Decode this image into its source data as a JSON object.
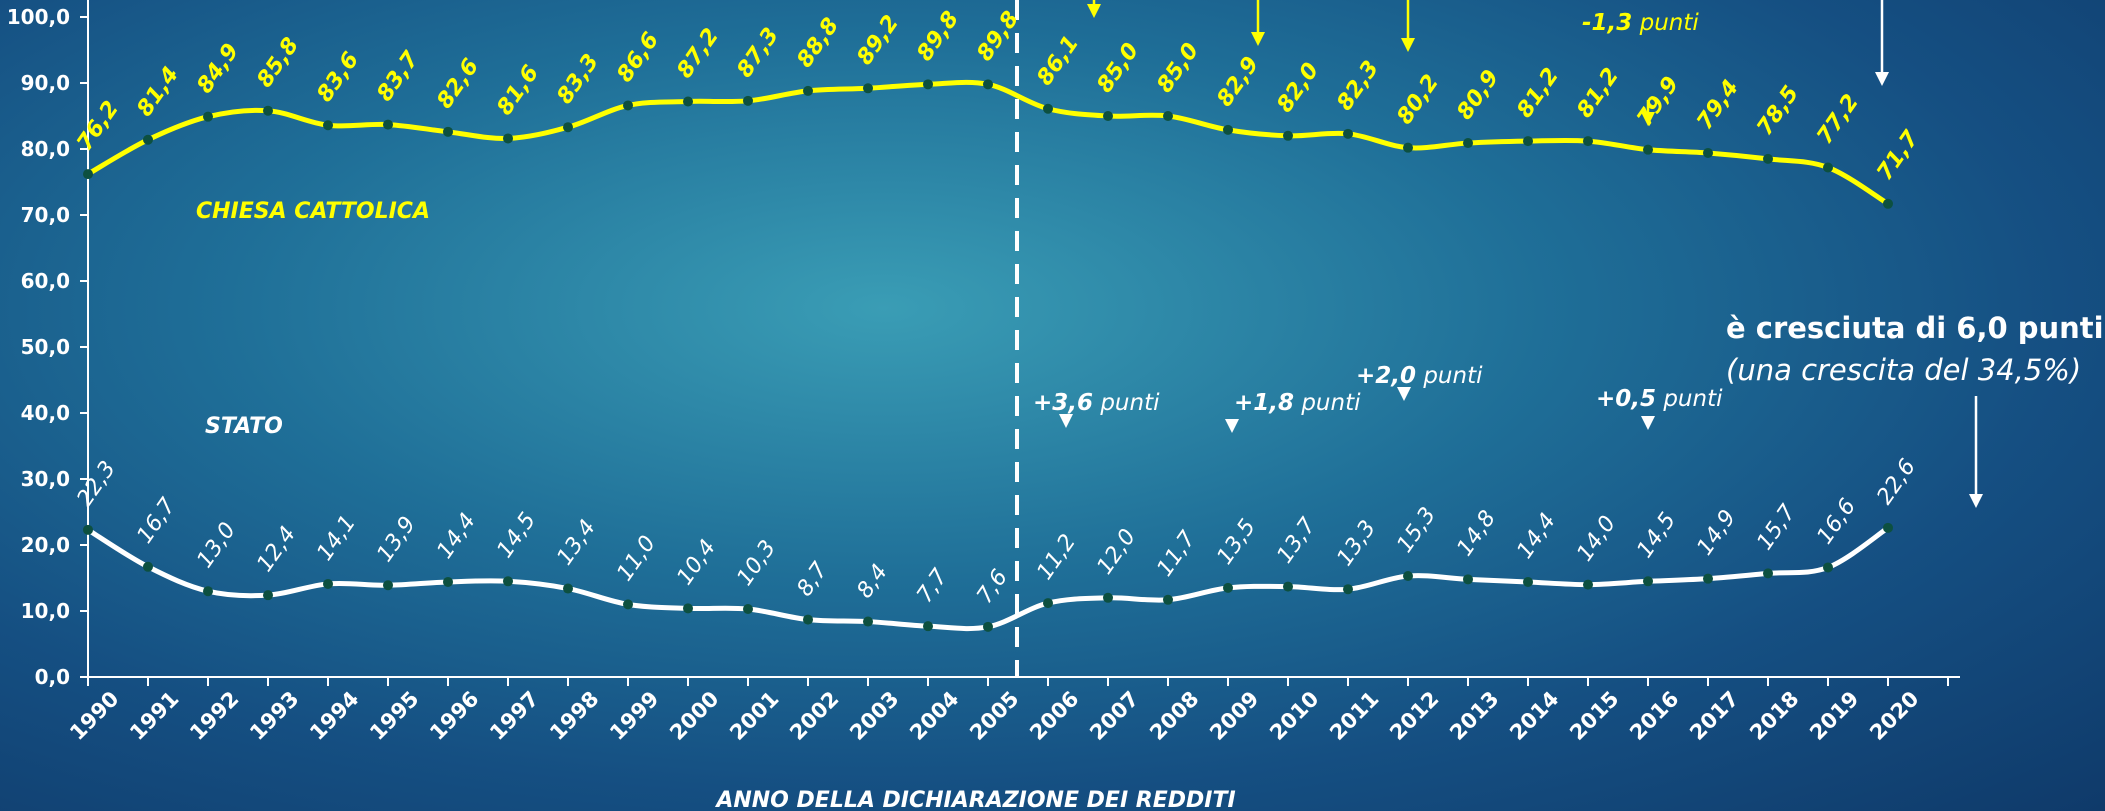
{
  "chart_data": {
    "type": "line",
    "title": "",
    "xlabel": "ANNO DELLA DICHIARAZIONE DEI REDDITI",
    "ylabel": "",
    "ylim": [
      0,
      100
    ],
    "yticks": [
      "0,0",
      "10,0",
      "20,0",
      "30,0",
      "40,0",
      "50,0",
      "60,0",
      "70,0",
      "80,0",
      "90,0",
      "100,0"
    ],
    "x": [
      "1990",
      "1991",
      "1992",
      "1993",
      "1994",
      "1995",
      "1996",
      "1997",
      "1998",
      "1999",
      "2000",
      "2001",
      "2002",
      "2003",
      "2004",
      "2005",
      "2006",
      "2007",
      "2008",
      "2009",
      "2010",
      "2011",
      "2012",
      "2013",
      "2014",
      "2015",
      "2016",
      "2017",
      "2018",
      "2019",
      "2020"
    ],
    "series": [
      {
        "name": "CHIESA CATTOLICA",
        "color": "#ffff00",
        "values": [
          76.2,
          81.4,
          84.9,
          85.8,
          83.6,
          83.7,
          82.6,
          81.6,
          83.3,
          86.6,
          87.2,
          87.3,
          88.8,
          89.2,
          89.8,
          89.8,
          86.1,
          85.0,
          85.0,
          82.9,
          82.0,
          82.3,
          80.2,
          80.9,
          81.2,
          81.2,
          79.9,
          79.4,
          78.5,
          77.2,
          71.7
        ],
        "labels": [
          "76,2",
          "81,4",
          "84,9",
          "85,8",
          "83,6",
          "83,7",
          "82,6",
          "81,6",
          "83,3",
          "86,6",
          "87,2",
          "87,3",
          "88,8",
          "89,2",
          "89,8",
          "89,8",
          "86,1",
          "85,0",
          "85,0",
          "82,9",
          "82,0",
          "82,3",
          "80,2",
          "80,9",
          "81,2",
          "81,2",
          "79,9",
          "79,4",
          "78,5",
          "77,2",
          "71,7"
        ]
      },
      {
        "name": "STATO",
        "color": "#ffffff",
        "values": [
          22.3,
          16.7,
          13.0,
          12.4,
          14.1,
          13.9,
          14.4,
          14.5,
          13.4,
          11.0,
          10.4,
          10.3,
          8.7,
          8.4,
          7.7,
          7.6,
          11.2,
          12.0,
          11.7,
          13.5,
          13.7,
          13.3,
          15.3,
          14.8,
          14.4,
          14.0,
          14.5,
          14.9,
          15.7,
          16.6,
          22.6
        ],
        "labels": [
          "22,3",
          "16,7",
          "13,0",
          "12,4",
          "14,1",
          "13,9",
          "14,4",
          "14,5",
          "13,4",
          "11,0",
          "10,4",
          "10,3",
          "8,7",
          "8,4",
          "7,7",
          "7,6",
          "11,2",
          "12,0",
          "11,7",
          "13,5",
          "13,7",
          "13,3",
          "15,3",
          "14,8",
          "14,4",
          "14,0",
          "14,5",
          "14,9",
          "15,7",
          "16,6",
          "22,6"
        ]
      }
    ],
    "divider_after": "2005",
    "grid": false,
    "annotations": {
      "stato_changes": [
        {
          "bold": "+3,6",
          "rest": " punti",
          "year": "2006"
        },
        {
          "bold": "+1,8",
          "rest": " punti",
          "year": "2009"
        },
        {
          "bold": "+2,0",
          "rest": " punti",
          "year": "2012"
        },
        {
          "bold": "+0,5",
          "rest": " punti",
          "year": "2016"
        }
      ],
      "cc_arrow_years": [
        "2006",
        "2009",
        "2012",
        "2016"
      ],
      "cc_top_text": [
        "-1,3",
        " punti"
      ],
      "stato_summary": [
        "è cresciuta di 6,0 punti",
        "(una crescita del 34,5%)"
      ]
    },
    "colors": {
      "cc_line": "#ffff00",
      "stato_line": "#ffffff",
      "marker": "#0d5040",
      "divider": "#ffffff"
    }
  }
}
